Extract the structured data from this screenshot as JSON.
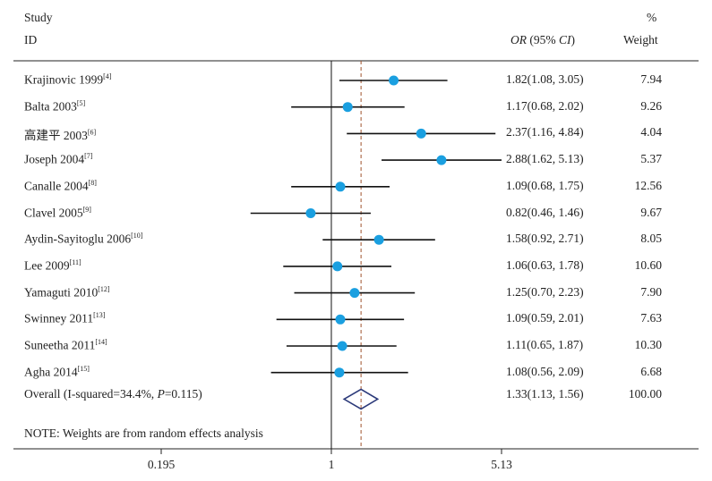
{
  "header": {
    "study": "Study",
    "id": "ID",
    "or_label": "OR",
    "ci_label": "(95% ",
    "ci_italic": "CI",
    "ci_close": ")",
    "pct": "%",
    "weight": "Weight"
  },
  "note": "NOTE: Weights are from random effects analysis",
  "overall_label_pre": "Overall (I-squared=34.4%, ",
  "overall_label_p": "P",
  "overall_label_post": "=0.115)",
  "colors": {
    "point": "#1a9fe0",
    "line": "#111111",
    "diamond": "#2c3a7a",
    "ref": "#a0522d"
  },
  "chart_data": {
    "type": "forest",
    "x_scale": "log",
    "x_ticks": [
      "0.195",
      "1",
      "5.13"
    ],
    "x_range": [
      0.195,
      5.13
    ],
    "null_value": 1,
    "studies": [
      {
        "name": "Krajinovic 1999",
        "ref": "[4]",
        "or": 1.82,
        "lo": 1.08,
        "hi": 3.05,
        "text": "1.82(1.08, 3.05)",
        "weight": "7.94"
      },
      {
        "name": "Balta 2003",
        "ref": "[5]",
        "or": 1.17,
        "lo": 0.68,
        "hi": 2.02,
        "text": "1.17(0.68, 2.02)",
        "weight": "9.26"
      },
      {
        "name": "高建平 2003",
        "ref": "[6]",
        "or": 2.37,
        "lo": 1.16,
        "hi": 4.84,
        "text": "2.37(1.16, 4.84)",
        "weight": "4.04"
      },
      {
        "name": "Joseph 2004",
        "ref": "[7]",
        "or": 2.88,
        "lo": 1.62,
        "hi": 5.13,
        "text": "2.88(1.62, 5.13)",
        "weight": "5.37"
      },
      {
        "name": "Canalle 2004",
        "ref": "[8]",
        "or": 1.09,
        "lo": 0.68,
        "hi": 1.75,
        "text": "1.09(0.68, 1.75)",
        "weight": "12.56"
      },
      {
        "name": "Clavel 2005",
        "ref": "[9]",
        "or": 0.82,
        "lo": 0.46,
        "hi": 1.46,
        "text": "0.82(0.46, 1.46)",
        "weight": "9.67"
      },
      {
        "name": "Aydin-Sayitoglu 2006",
        "ref": "[10]",
        "or": 1.58,
        "lo": 0.92,
        "hi": 2.71,
        "text": "1.58(0.92, 2.71)",
        "weight": "8.05"
      },
      {
        "name": "Lee 2009",
        "ref": "[11]",
        "or": 1.06,
        "lo": 0.63,
        "hi": 1.78,
        "text": "1.06(0.63, 1.78)",
        "weight": "10.60"
      },
      {
        "name": "Yamaguti 2010",
        "ref": "[12]",
        "or": 1.25,
        "lo": 0.7,
        "hi": 2.23,
        "text": "1.25(0.70, 2.23)",
        "weight": "7.90"
      },
      {
        "name": "Swinney 2011",
        "ref": "[13]",
        "or": 1.09,
        "lo": 0.59,
        "hi": 2.01,
        "text": "1.09(0.59, 2.01)",
        "weight": "7.63"
      },
      {
        "name": "Suneetha 2011",
        "ref": "[14]",
        "or": 1.11,
        "lo": 0.65,
        "hi": 1.87,
        "text": "1.11(0.65, 1.87)",
        "weight": "10.30"
      },
      {
        "name": "Agha 2014",
        "ref": "[15]",
        "or": 1.08,
        "lo": 0.56,
        "hi": 2.09,
        "text": "1.08(0.56, 2.09)",
        "weight": "6.68"
      }
    ],
    "overall": {
      "or": 1.33,
      "lo": 1.13,
      "hi": 1.56,
      "text": "1.33(1.13, 1.56)",
      "weight": "100.00"
    }
  }
}
